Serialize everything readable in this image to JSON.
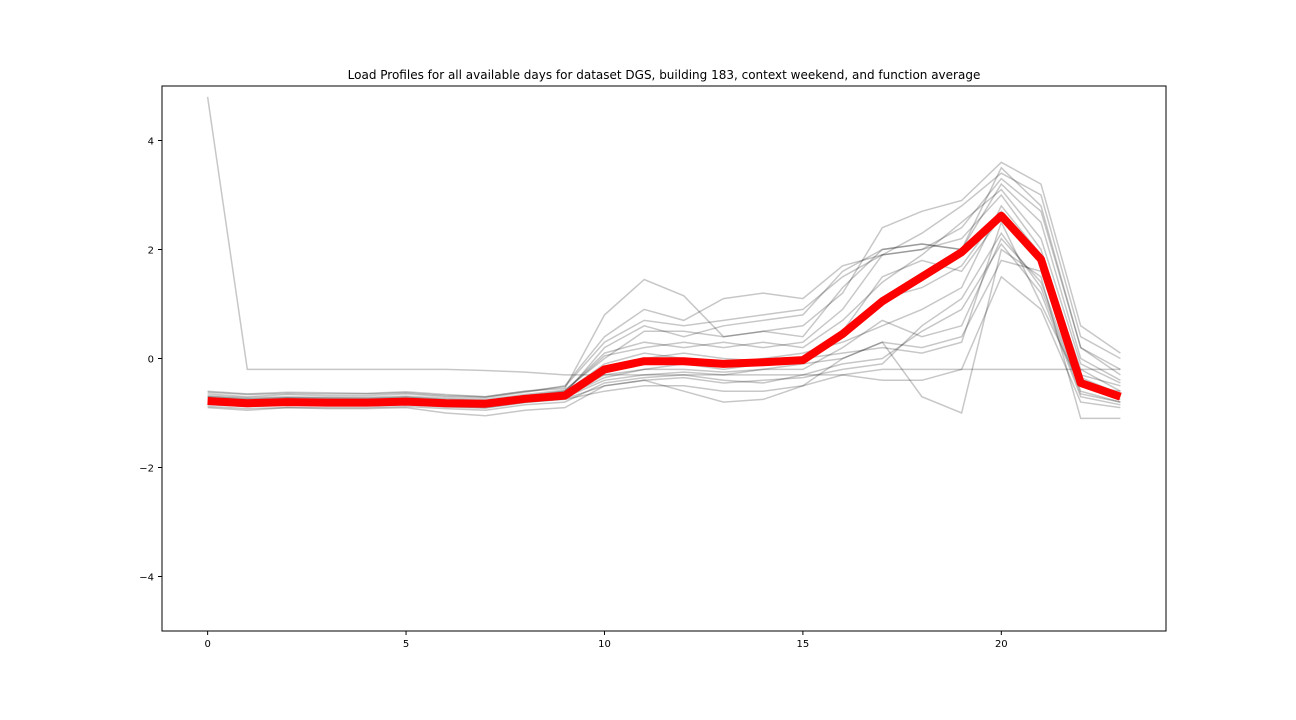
{
  "chart_data": {
    "type": "line",
    "title": "Load Profiles for all available days for dataset DGS, building 183, context weekend, and function average",
    "xlabel": "",
    "ylabel": "",
    "xlim": [
      -1.15,
      24.15
    ],
    "ylim": [
      -5,
      5
    ],
    "xticks": [
      0,
      5,
      10,
      15,
      20
    ],
    "yticks": [
      -4,
      -2,
      0,
      2,
      4
    ],
    "xtick_labels": [
      "0",
      "5",
      "10",
      "15",
      "20"
    ],
    "ytick_labels": [
      "−4",
      "−2",
      "0",
      "2",
      "4"
    ],
    "grid": false,
    "x": [
      0,
      1,
      2,
      3,
      4,
      5,
      6,
      7,
      8,
      9,
      10,
      11,
      12,
      13,
      14,
      15,
      16,
      17,
      18,
      19,
      20,
      21,
      22,
      23
    ],
    "average": {
      "color": "#ff0000",
      "values": [
        -0.78,
        -0.82,
        -0.8,
        -0.81,
        -0.81,
        -0.79,
        -0.82,
        -0.83,
        -0.74,
        -0.68,
        -0.2,
        -0.05,
        -0.05,
        -0.1,
        -0.07,
        -0.03,
        0.45,
        1.05,
        1.5,
        1.95,
        2.62,
        1.82,
        -0.45,
        -0.7
      ]
    },
    "profile_color": "#000000",
    "profiles": [
      [
        4.8,
        -0.2,
        -0.2,
        -0.2,
        -0.2,
        -0.2,
        -0.2,
        -0.22,
        -0.25,
        -0.3,
        -0.3,
        -0.3,
        -0.3,
        -0.3,
        -0.3,
        -0.3,
        -0.3,
        -0.2,
        -0.2,
        -0.2,
        -0.2,
        -0.2,
        -0.2,
        -0.2
      ],
      [
        -0.6,
        -0.65,
        -0.62,
        -0.63,
        -0.64,
        -0.61,
        -0.66,
        -0.7,
        -0.6,
        -0.55,
        0.8,
        1.45,
        1.15,
        0.4,
        0.5,
        0.6,
        1.2,
        2.4,
        2.7,
        2.9,
        3.6,
        3.2,
        0.6,
        0.1
      ],
      [
        -0.9,
        -0.95,
        -0.9,
        -0.92,
        -0.92,
        -0.9,
        -1.0,
        -1.05,
        -0.95,
        -0.9,
        -0.5,
        -0.4,
        -0.6,
        -0.8,
        -0.75,
        -0.5,
        0.0,
        0.3,
        -0.7,
        -1.0,
        2.0,
        1.5,
        -1.1,
        -1.1
      ],
      [
        -0.7,
        -0.75,
        -0.72,
        -0.73,
        -0.74,
        -0.71,
        -0.76,
        -0.78,
        -0.7,
        -0.65,
        0.2,
        0.6,
        0.4,
        0.6,
        0.7,
        0.8,
        1.6,
        2.0,
        2.1,
        2.0,
        3.5,
        2.8,
        0.2,
        -0.3
      ],
      [
        -0.8,
        -0.82,
        -0.8,
        -0.81,
        -0.81,
        -0.79,
        -0.82,
        -0.83,
        -0.74,
        -0.7,
        -0.3,
        -0.2,
        -0.1,
        -0.2,
        -0.1,
        0.0,
        0.1,
        0.2,
        0.1,
        0.3,
        2.5,
        1.0,
        -0.5,
        -0.6
      ],
      [
        -0.75,
        -0.8,
        -0.78,
        -0.79,
        -0.8,
        -0.77,
        -0.8,
        -0.82,
        -0.7,
        -0.6,
        0.1,
        0.3,
        0.2,
        0.3,
        0.2,
        0.3,
        0.9,
        1.9,
        2.0,
        2.2,
        3.0,
        2.0,
        -0.3,
        -0.5
      ],
      [
        -0.85,
        -0.88,
        -0.85,
        -0.86,
        -0.86,
        -0.84,
        -0.88,
        -0.9,
        -0.8,
        -0.75,
        -0.6,
        -0.5,
        -0.5,
        -0.6,
        -0.6,
        -0.5,
        -0.3,
        -0.4,
        -0.4,
        -0.2,
        1.5,
        0.9,
        -0.8,
        -0.9
      ],
      [
        -0.65,
        -0.7,
        -0.66,
        -0.68,
        -0.68,
        -0.65,
        -0.7,
        -0.72,
        -0.62,
        -0.5,
        0.4,
        0.9,
        0.7,
        1.1,
        1.2,
        1.1,
        1.7,
        1.9,
        2.3,
        2.8,
        3.4,
        3.0,
        0.4,
        0.0
      ],
      [
        -0.72,
        -0.78,
        -0.75,
        -0.76,
        -0.77,
        -0.74,
        -0.78,
        -0.8,
        -0.72,
        -0.62,
        -0.1,
        0.1,
        0.0,
        -0.1,
        0.0,
        0.1,
        0.3,
        0.6,
        0.9,
        1.3,
        2.8,
        1.9,
        -0.2,
        -0.6
      ],
      [
        -0.82,
        -0.86,
        -0.84,
        -0.85,
        -0.85,
        -0.83,
        -0.86,
        -0.88,
        -0.78,
        -0.72,
        -0.4,
        -0.3,
        -0.25,
        -0.3,
        -0.2,
        -0.2,
        0.2,
        0.7,
        0.4,
        0.6,
        2.2,
        1.4,
        -0.6,
        -0.8
      ],
      [
        -0.68,
        -0.72,
        -0.7,
        -0.71,
        -0.71,
        -0.69,
        -0.73,
        -0.75,
        -0.66,
        -0.58,
        0.0,
        0.5,
        0.5,
        0.4,
        0.5,
        0.4,
        1.3,
        2.0,
        2.1,
        2.0,
        3.2,
        2.5,
        0.0,
        -0.4
      ],
      [
        -0.88,
        -0.92,
        -0.9,
        -0.9,
        -0.9,
        -0.88,
        -0.92,
        -0.95,
        -0.85,
        -0.8,
        -0.45,
        -0.35,
        -0.3,
        -0.4,
        -0.45,
        -0.3,
        -0.1,
        0.0,
        0.5,
        0.9,
        2.1,
        1.2,
        -0.7,
        -0.85
      ],
      [
        -0.78,
        -0.83,
        -0.8,
        -0.81,
        -0.82,
        -0.8,
        -0.84,
        -0.86,
        -0.76,
        -0.66,
        -0.2,
        0.0,
        0.1,
        0.0,
        -0.05,
        0.0,
        0.5,
        1.5,
        1.8,
        1.6,
        2.6,
        1.8,
        -0.4,
        -0.7
      ],
      [
        -0.62,
        -0.66,
        -0.64,
        -0.65,
        -0.65,
        -0.63,
        -0.68,
        -0.7,
        -0.6,
        -0.52,
        0.3,
        0.7,
        0.6,
        0.7,
        0.8,
        0.9,
        1.5,
        1.9,
        2.0,
        2.4,
        3.3,
        2.7,
        0.2,
        -0.2
      ],
      [
        -0.8,
        -0.84,
        -0.82,
        -0.83,
        -0.83,
        -0.81,
        -0.85,
        -0.87,
        -0.77,
        -0.7,
        -0.35,
        -0.2,
        -0.2,
        -0.25,
        -0.2,
        -0.1,
        0.0,
        0.3,
        0.2,
        0.4,
        1.8,
        1.6,
        -0.5,
        -0.75
      ],
      [
        -0.7,
        -0.74,
        -0.72,
        -0.73,
        -0.73,
        -0.71,
        -0.75,
        -0.77,
        -0.68,
        -0.6,
        0.05,
        0.2,
        0.3,
        0.2,
        0.3,
        0.2,
        0.7,
        1.4,
        1.9,
        2.5,
        3.1,
        2.2,
        -0.1,
        -0.45
      ],
      [
        -0.76,
        -0.8,
        -0.78,
        -0.79,
        -0.79,
        -0.77,
        -0.81,
        -0.83,
        -0.73,
        -0.65,
        -0.15,
        -0.05,
        -0.1,
        -0.05,
        -0.1,
        -0.05,
        0.4,
        1.1,
        1.3,
        1.7,
        2.7,
        1.9,
        -0.35,
        -0.65
      ],
      [
        -0.84,
        -0.88,
        -0.86,
        -0.87,
        -0.87,
        -0.85,
        -0.89,
        -0.91,
        -0.81,
        -0.74,
        -0.5,
        -0.4,
        -0.35,
        -0.45,
        -0.4,
        -0.35,
        -0.2,
        -0.1,
        0.6,
        1.1,
        2.3,
        1.3,
        -0.65,
        -0.8
      ]
    ]
  }
}
